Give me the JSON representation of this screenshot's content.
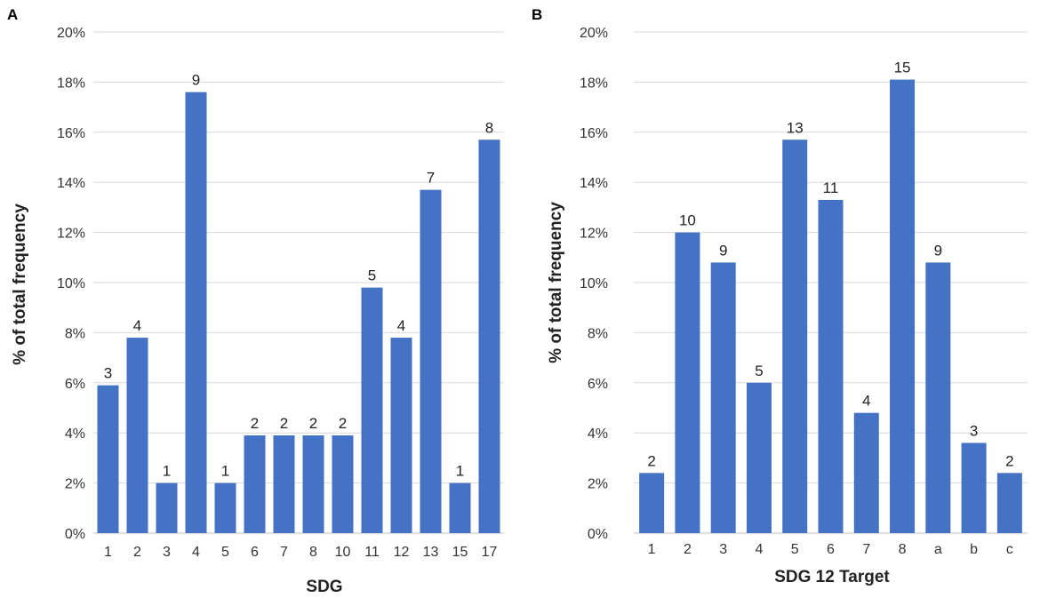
{
  "chart_data": [
    {
      "panel": "A",
      "type": "bar",
      "categories": [
        "1",
        "2",
        "3",
        "4",
        "5",
        "6",
        "7",
        "8",
        "10",
        "11",
        "12",
        "13",
        "15",
        "17"
      ],
      "values": [
        5.9,
        7.8,
        2.0,
        17.6,
        2.0,
        3.9,
        3.9,
        3.9,
        3.9,
        9.8,
        7.8,
        13.7,
        2.0,
        15.7
      ],
      "data_labels": [
        "3",
        "4",
        "1",
        "9",
        "1",
        "2",
        "2",
        "2",
        "2",
        "5",
        "4",
        "7",
        "1",
        "8"
      ],
      "xlabel": "SDG",
      "ylabel": "% of total frequency",
      "ylim": [
        0,
        20
      ],
      "yticks": [
        "0%",
        "2%",
        "4%",
        "6%",
        "8%",
        "10%",
        "12%",
        "14%",
        "16%",
        "18%",
        "20%"
      ],
      "grid": true,
      "color": "#4472C4"
    },
    {
      "panel": "B",
      "type": "bar",
      "categories": [
        "1",
        "2",
        "3",
        "4",
        "5",
        "6",
        "7",
        "8",
        "a",
        "b",
        "c"
      ],
      "values": [
        2.4,
        12.0,
        10.8,
        6.0,
        15.7,
        13.3,
        4.8,
        18.1,
        10.8,
        3.6,
        2.4
      ],
      "data_labels": [
        "2",
        "10",
        "9",
        "5",
        "13",
        "11",
        "4",
        "15",
        "9",
        "3",
        "2"
      ],
      "xlabel": "SDG 12 Target",
      "ylabel": "% of total frequency",
      "ylim": [
        0,
        20
      ],
      "yticks": [
        "0%",
        "2%",
        "4%",
        "6%",
        "8%",
        "10%",
        "12%",
        "14%",
        "16%",
        "18%",
        "20%"
      ],
      "grid": true,
      "color": "#4472C4"
    }
  ]
}
